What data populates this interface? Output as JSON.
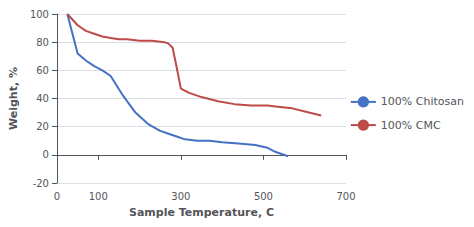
{
  "chart_data": {
    "type": "line",
    "title": "",
    "xlabel": "Sample Temperature, C",
    "ylabel": "Weight, %",
    "xlim": [
      0,
      700
    ],
    "xticks": [
      0,
      100,
      300,
      500,
      700
    ],
    "ylim": [
      -20,
      100
    ],
    "yticks": [
      -20,
      0,
      20,
      40,
      60,
      80,
      100
    ],
    "grid": true,
    "legend": "right",
    "series": [
      {
        "name": "100% Chitosan",
        "color": "#4472C4",
        "x": [
          25,
          50,
          70,
          90,
          110,
          130,
          160,
          190,
          220,
          250,
          270,
          290,
          310,
          340,
          370,
          400,
          440,
          480,
          510,
          530,
          560
        ],
        "values": [
          100,
          72,
          67,
          63,
          60,
          56,
          42,
          30,
          22,
          17,
          15,
          13,
          11,
          10,
          10,
          9,
          8,
          7,
          5,
          2,
          -1
        ]
      },
      {
        "name": "100% CMC",
        "color": "#BE4B48",
        "x": [
          25,
          50,
          70,
          90,
          110,
          130,
          150,
          170,
          200,
          230,
          260,
          270,
          280,
          290,
          300,
          320,
          350,
          390,
          430,
          470,
          510,
          540,
          570,
          610,
          640
        ],
        "values": [
          100,
          92,
          88,
          86,
          84,
          83,
          82,
          82,
          81,
          81,
          80,
          79,
          76,
          62,
          47,
          44,
          41,
          38,
          36,
          35,
          35,
          34,
          33,
          30,
          28
        ]
      }
    ]
  }
}
